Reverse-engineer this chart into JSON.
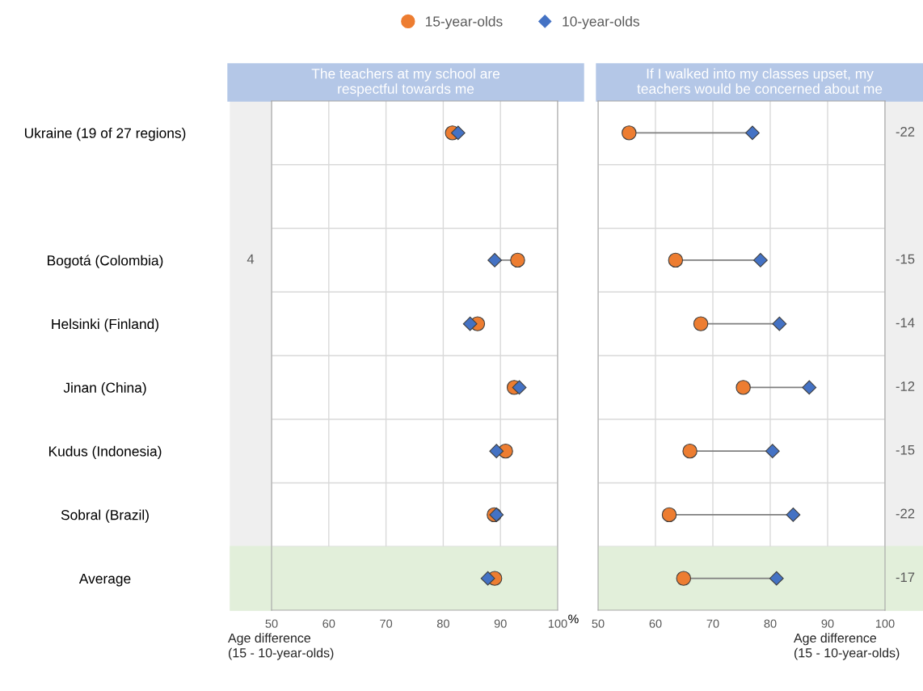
{
  "chart_data": [
    {
      "type": "scatter",
      "orientation": "horizontal",
      "title": "The teachers at my school are\nrespectful towards me",
      "xlabel": "%",
      "categories": [
        "Ukraine (19 of 27 regions)",
        null,
        "Bogotá (Colombia)",
        "Helsinki (Finland)",
        "Jinan (China)",
        "Kudus (Indonesia)",
        "Sobral (Brazil)",
        "Average"
      ],
      "series": [
        {
          "name": "15-year-olds",
          "color": "#ed7d31",
          "marker": "circle",
          "values": [
            81.6,
            null,
            93.0,
            86.0,
            92.4,
            90.9,
            88.9,
            89.0
          ]
        },
        {
          "name": "10-year-olds",
          "color": "#4472c4",
          "marker": "diamond",
          "values": [
            82.6,
            null,
            89.0,
            84.7,
            93.3,
            89.3,
            89.3,
            87.8
          ]
        }
      ],
      "value_labels": [
        null,
        null,
        "4",
        null,
        null,
        null,
        null,
        null
      ],
      "xlim": [
        50,
        100
      ],
      "xticks": [
        50,
        60,
        70,
        80,
        90,
        100
      ],
      "grid": true,
      "legend": "top",
      "bands": [
        {
          "axis": "y",
          "from": "Average",
          "to": "Average",
          "color": "#e2efda"
        }
      ],
      "annotations": [
        "Age difference\n(15 - 10-year-olds)"
      ]
    },
    {
      "type": "scatter",
      "orientation": "horizontal",
      "title": "If I walked into my classes upset, my\nteachers would be concerned about me",
      "tick_labels": "x",
      "categories": [
        "Ukraine (19 of 27 regions)",
        null,
        "Bogotá (Colombia)",
        "Helsinki (Finland)",
        "Jinan (China)",
        "Kudus (Indonesia)",
        "Sobral (Brazil)",
        "Average"
      ],
      "series": [
        {
          "color": "#ed7d31",
          "marker": "circle",
          "values": [
            55.4,
            null,
            63.5,
            67.9,
            75.3,
            66.0,
            62.4,
            64.9
          ]
        },
        {
          "color": "#4472c4",
          "marker": "diamond",
          "values": [
            76.9,
            null,
            78.3,
            81.6,
            86.8,
            80.4,
            84.0,
            81.1
          ]
        }
      ],
      "value_labels": [
        "-22",
        null,
        "-15",
        "-14",
        "-12",
        "-15",
        "-22",
        "-17"
      ],
      "xlim": [
        50,
        100
      ],
      "xticks": [
        50,
        60,
        70,
        80,
        90,
        100
      ],
      "grid": true,
      "legend": false,
      "bands": [
        {
          "axis": "y",
          "from": "Average",
          "to": "Average",
          "color": "#e2efda"
        }
      ],
      "annotations": [
        "Age difference\n(15 - 10-year-olds)"
      ]
    }
  ]
}
